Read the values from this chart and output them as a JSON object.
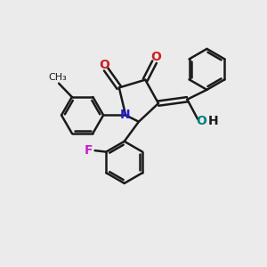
{
  "background_color": "#ebebeb",
  "bond_color": "#1a1a1a",
  "N_color": "#2020cc",
  "O_color": "#cc2020",
  "F_color": "#cc20cc",
  "OH_O_color": "#008080",
  "OH_H_color": "#1a1a1a",
  "line_width": 1.8,
  "figsize": [
    3.0,
    3.0
  ],
  "dpi": 100,
  "xlim": [
    0,
    10
  ],
  "ylim": [
    0,
    10
  ]
}
